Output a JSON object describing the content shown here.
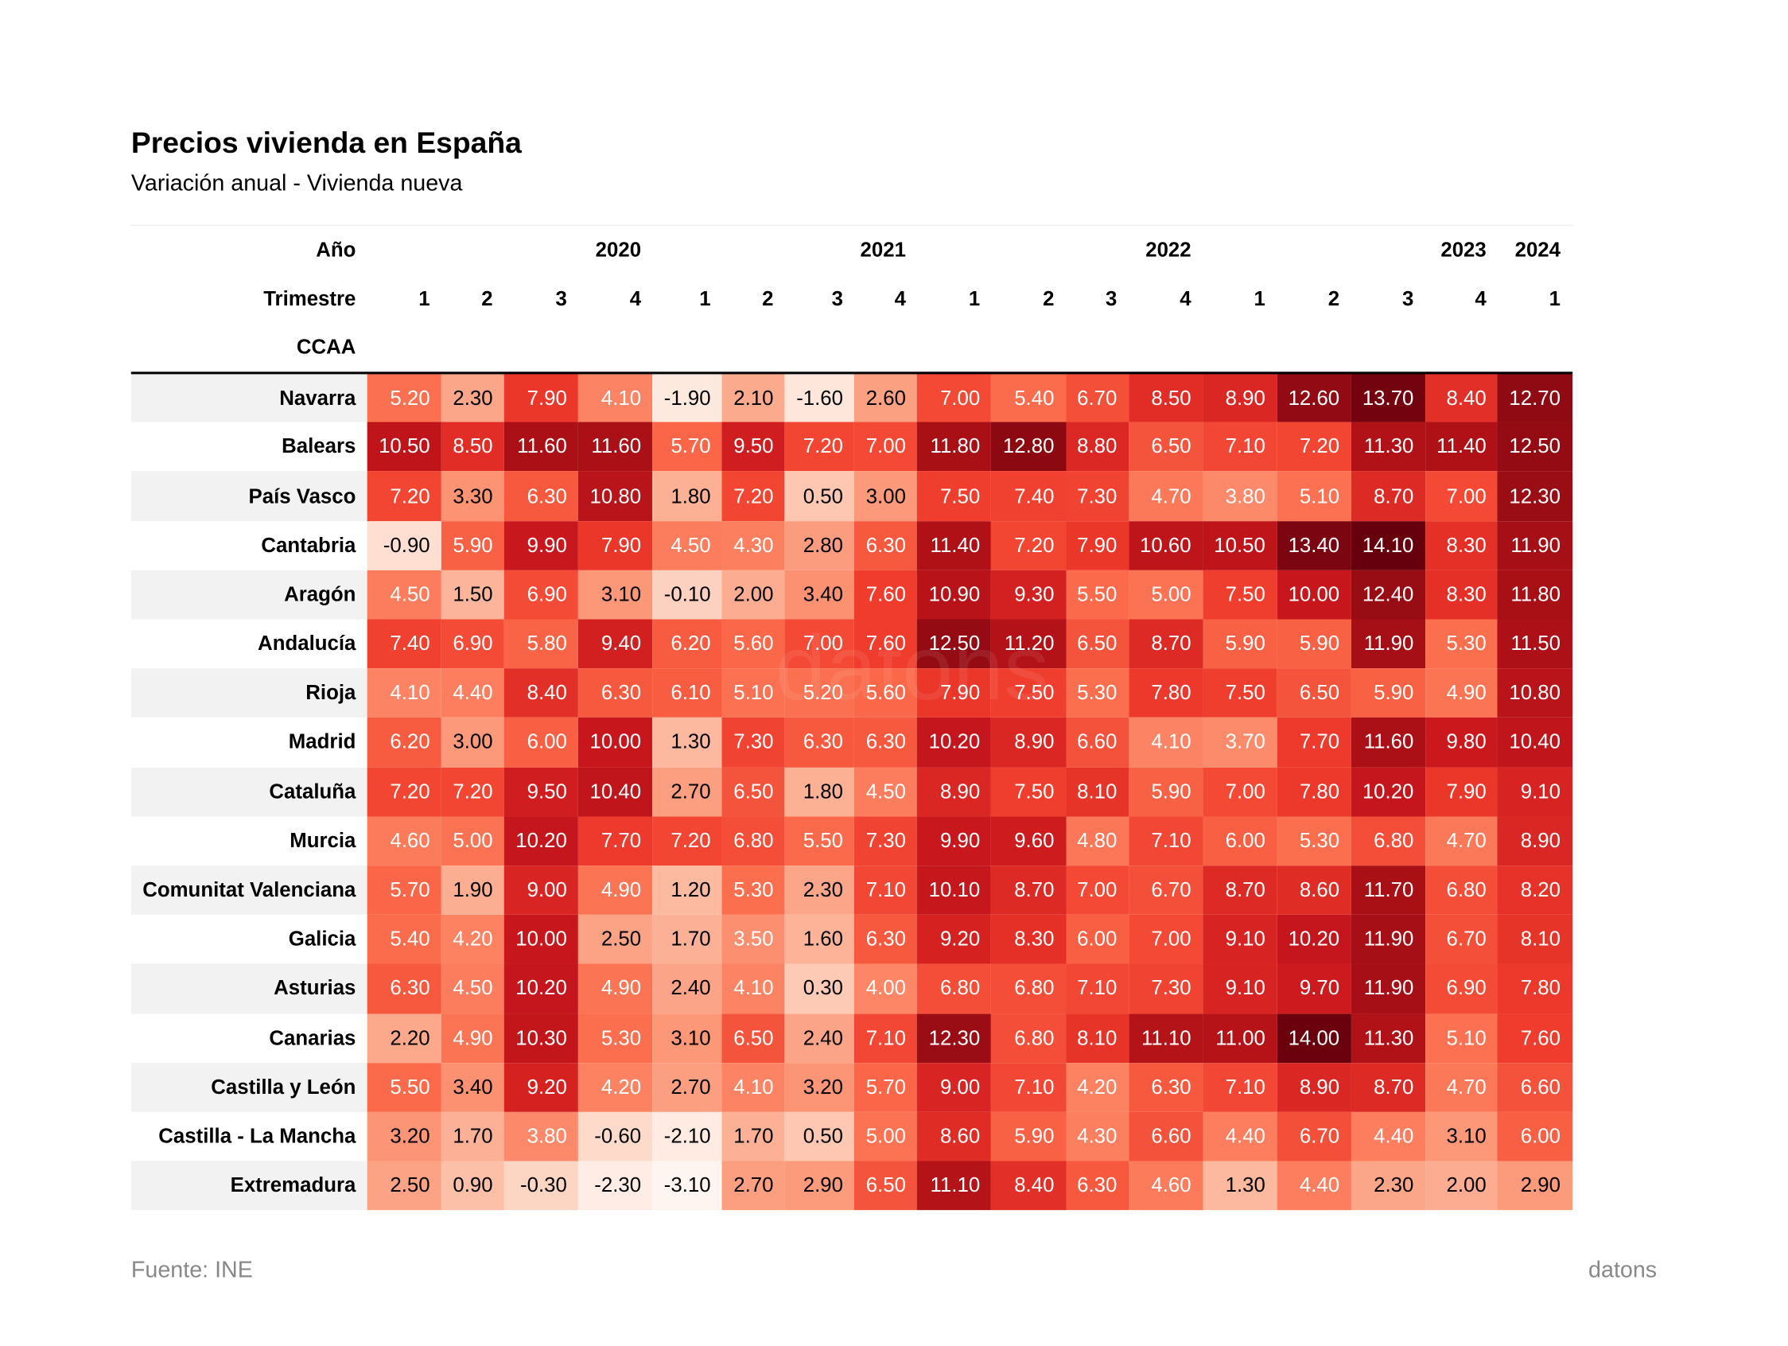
{
  "title": "Precios vivienda en España",
  "subtitle": "Variación anual - Vivienda nueva",
  "source": "Fuente: INE",
  "brand": "datons",
  "chart_data": {
    "type": "heatmap",
    "colormap": "Reds",
    "header_labels": {
      "year": "Año",
      "quarter": "Trimestre",
      "index": "CCAA"
    },
    "year_groups": [
      {
        "label": "2020",
        "span": 4
      },
      {
        "label": "2021",
        "span": 4
      },
      {
        "label": "2022",
        "span": 4
      },
      {
        "label": "2023",
        "span": 4
      },
      {
        "label": "2024",
        "span": 1
      }
    ],
    "quarters": [
      "1",
      "2",
      "3",
      "4",
      "1",
      "2",
      "3",
      "4",
      "1",
      "2",
      "3",
      "4",
      "1",
      "2",
      "3",
      "4",
      "1"
    ],
    "rows": [
      {
        "name": "Navarra",
        "values": [
          5.2,
          2.3,
          7.9,
          4.1,
          -1.9,
          2.1,
          -1.6,
          2.6,
          7.0,
          5.4,
          6.7,
          8.5,
          8.9,
          12.6,
          13.7,
          8.4,
          12.7
        ]
      },
      {
        "name": "Balears",
        "values": [
          10.5,
          8.5,
          11.6,
          11.6,
          5.7,
          9.5,
          7.2,
          7.0,
          11.8,
          12.8,
          8.8,
          6.5,
          7.1,
          7.2,
          11.3,
          11.4,
          12.5
        ]
      },
      {
        "name": "País Vasco",
        "values": [
          7.2,
          3.3,
          6.3,
          10.8,
          1.8,
          7.2,
          0.5,
          3.0,
          7.5,
          7.4,
          7.3,
          4.7,
          3.8,
          5.1,
          8.7,
          7.0,
          12.3
        ]
      },
      {
        "name": "Cantabria",
        "values": [
          -0.9,
          5.9,
          9.9,
          7.9,
          4.5,
          4.3,
          2.8,
          6.3,
          11.4,
          7.2,
          7.9,
          10.6,
          10.5,
          13.4,
          14.1,
          8.3,
          11.9
        ]
      },
      {
        "name": "Aragón",
        "values": [
          4.5,
          1.5,
          6.9,
          3.1,
          -0.1,
          2.0,
          3.4,
          7.6,
          10.9,
          9.3,
          5.5,
          5.0,
          7.5,
          10.0,
          12.4,
          8.3,
          11.8
        ]
      },
      {
        "name": "Andalucía",
        "values": [
          7.4,
          6.9,
          5.8,
          9.4,
          6.2,
          5.6,
          7.0,
          7.6,
          12.5,
          11.2,
          6.5,
          8.7,
          5.9,
          5.9,
          11.9,
          5.3,
          11.5
        ]
      },
      {
        "name": "Rioja",
        "values": [
          4.1,
          4.4,
          8.4,
          6.3,
          6.1,
          5.1,
          5.2,
          5.6,
          7.9,
          7.5,
          5.3,
          7.8,
          7.5,
          6.5,
          5.9,
          4.9,
          10.8
        ]
      },
      {
        "name": "Madrid",
        "values": [
          6.2,
          3.0,
          6.0,
          10.0,
          1.3,
          7.3,
          6.3,
          6.3,
          10.2,
          8.9,
          6.6,
          4.1,
          3.7,
          7.7,
          11.6,
          9.8,
          10.4
        ]
      },
      {
        "name": "Cataluña",
        "values": [
          7.2,
          7.2,
          9.5,
          10.4,
          2.7,
          6.5,
          1.8,
          4.5,
          8.9,
          7.5,
          8.1,
          5.9,
          7.0,
          7.8,
          10.2,
          7.9,
          9.1
        ]
      },
      {
        "name": "Murcia",
        "values": [
          4.6,
          5.0,
          10.2,
          7.7,
          7.2,
          6.8,
          5.5,
          7.3,
          9.9,
          9.6,
          4.8,
          7.1,
          6.0,
          5.3,
          6.8,
          4.7,
          8.9
        ]
      },
      {
        "name": "Comunitat Valenciana",
        "values": [
          5.7,
          1.9,
          9.0,
          4.9,
          1.2,
          5.3,
          2.3,
          7.1,
          10.1,
          8.7,
          7.0,
          6.7,
          8.7,
          8.6,
          11.7,
          6.8,
          8.2
        ]
      },
      {
        "name": "Galicia",
        "values": [
          5.4,
          4.2,
          10.0,
          2.5,
          1.7,
          3.5,
          1.6,
          6.3,
          9.2,
          8.3,
          6.0,
          7.0,
          9.1,
          10.2,
          11.9,
          6.7,
          8.1
        ]
      },
      {
        "name": "Asturias",
        "values": [
          6.3,
          4.5,
          10.2,
          4.9,
          2.4,
          4.1,
          0.3,
          4.0,
          6.8,
          6.8,
          7.1,
          7.3,
          9.1,
          9.7,
          11.9,
          6.9,
          7.8
        ]
      },
      {
        "name": "Canarias",
        "values": [
          2.2,
          4.9,
          10.3,
          5.3,
          3.1,
          6.5,
          2.4,
          7.1,
          12.3,
          6.8,
          8.1,
          11.1,
          11.0,
          14.0,
          11.3,
          5.1,
          7.6
        ]
      },
      {
        "name": "Castilla y León",
        "values": [
          5.5,
          3.4,
          9.2,
          4.2,
          2.7,
          4.1,
          3.2,
          5.7,
          9.0,
          7.1,
          4.2,
          6.3,
          7.1,
          8.9,
          8.7,
          4.7,
          6.6
        ]
      },
      {
        "name": "Castilla - La Mancha",
        "values": [
          3.2,
          1.7,
          3.8,
          -0.6,
          -2.1,
          1.7,
          0.5,
          5.0,
          8.6,
          5.9,
          4.3,
          6.6,
          4.4,
          6.7,
          4.4,
          3.1,
          6.0
        ]
      },
      {
        "name": "Extremadura",
        "values": [
          2.5,
          0.9,
          -0.3,
          -2.3,
          -3.1,
          2.7,
          2.9,
          6.5,
          11.1,
          8.4,
          6.3,
          4.6,
          1.3,
          4.4,
          2.3,
          2.0,
          2.9
        ]
      }
    ]
  }
}
